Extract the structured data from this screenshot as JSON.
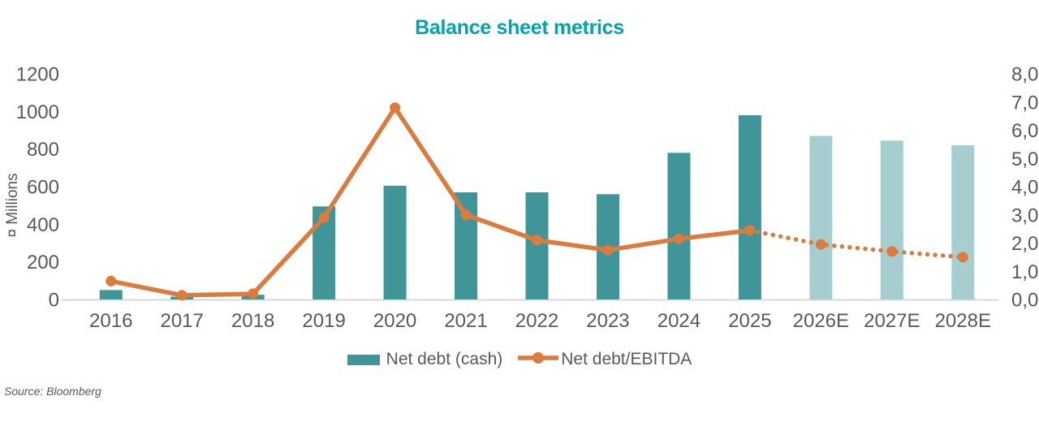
{
  "chart_data": {
    "type": "bar",
    "subtype": "bar+line combo, dual axis",
    "title": "Balance sheet metrics",
    "categories": [
      "2016",
      "2017",
      "2018",
      "2019",
      "2020",
      "2021",
      "2022",
      "2023",
      "2024",
      "2025",
      "2026E",
      "2027E",
      "2028E"
    ],
    "series": [
      {
        "name": "Net debt (cash)",
        "type": "bar",
        "axis": "left",
        "values": [
          50,
          15,
          25,
          495,
          605,
          570,
          570,
          560,
          780,
          980,
          870,
          845,
          820
        ],
        "forecast_from_index": 10
      },
      {
        "name": "Net debt/EBITDA",
        "type": "line",
        "axis": "right",
        "values": [
          0.65,
          0.15,
          0.2,
          2.9,
          6.8,
          3.0,
          2.1,
          1.75,
          2.15,
          2.45,
          1.95,
          1.7,
          1.5
        ],
        "dotted_from_index": 9
      }
    ],
    "ylabel_left": "¤ Millions",
    "axis_left": {
      "min": 0,
      "max": 1200,
      "tick_values": [
        0,
        200,
        400,
        600,
        800,
        1000,
        1200
      ],
      "tick_labels": [
        "0",
        "200",
        "400",
        "600",
        "800",
        "1000",
        "1200"
      ]
    },
    "axis_right": {
      "min": 0,
      "max": 8,
      "tick_values": [
        0,
        1,
        2,
        3,
        4,
        5,
        6,
        7,
        8
      ],
      "tick_labels": [
        "0,0",
        "1,0",
        "2,0",
        "3,0",
        "4,0",
        "5,0",
        "6,0",
        "7,0",
        "8,0"
      ]
    },
    "grid": false,
    "legend_position": "bottom-center",
    "colors": {
      "bar_actual": "#3F9598",
      "bar_forecast": "#A6CDD0",
      "line": "#DC7B3E",
      "title": "#00A4AF",
      "axis_text": "#595959",
      "axis_line": "#D9D9D9"
    }
  },
  "source_note": "Source: Bloomberg"
}
